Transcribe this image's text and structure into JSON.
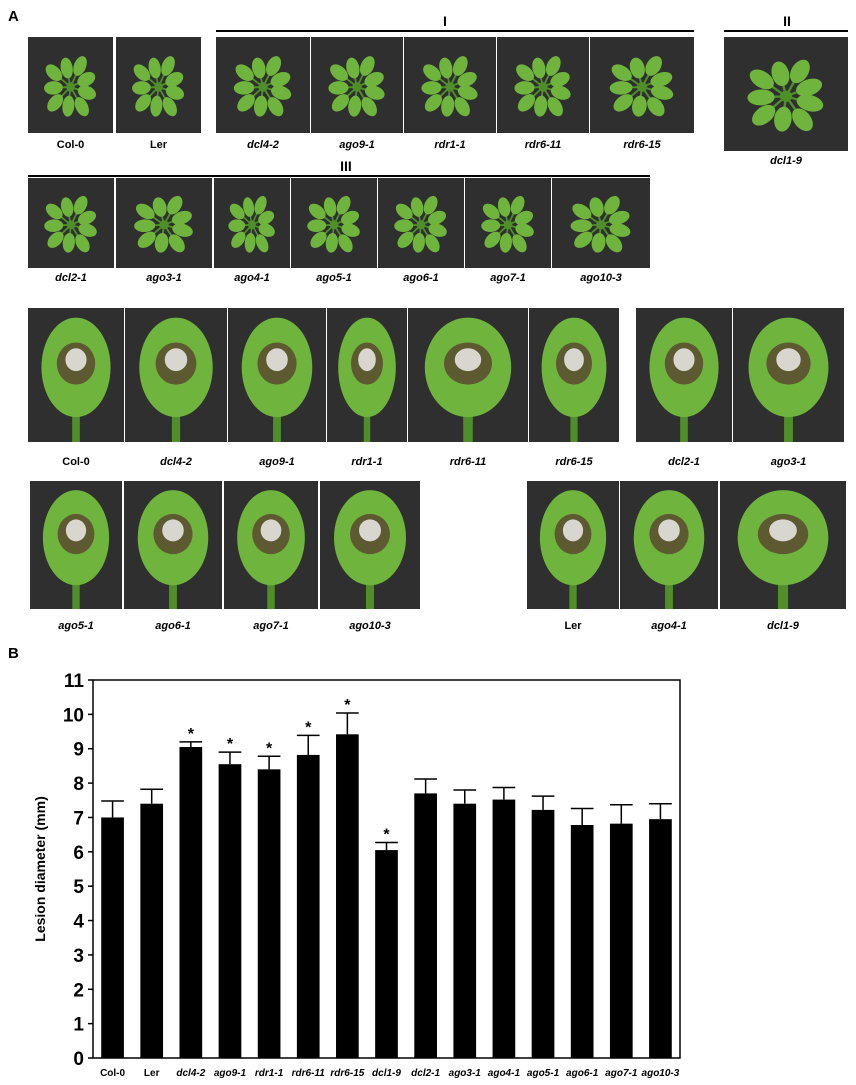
{
  "panels": {
    "a": "A",
    "b": "B"
  },
  "group_labels": {
    "g1": "I",
    "g2": "II",
    "g3": "III"
  },
  "row1": [
    {
      "label": "Col-0",
      "italic": false
    },
    {
      "label": "Ler",
      "italic": false
    },
    {
      "label": "dcl4-2",
      "italic": true
    },
    {
      "label": "ago9-1",
      "italic": true
    },
    {
      "label": "rdr1-1",
      "italic": true
    },
    {
      "label": "rdr6-11",
      "italic": true
    },
    {
      "label": "rdr6-15",
      "italic": true
    },
    {
      "label": "dcl1-9",
      "italic": true
    }
  ],
  "row2": [
    {
      "label": "dcl2-1",
      "italic": true
    },
    {
      "label": "ago3-1",
      "italic": true
    },
    {
      "label": "ago4-1",
      "italic": true
    },
    {
      "label": "ago5-1",
      "italic": true
    },
    {
      "label": "ago6-1",
      "italic": true
    },
    {
      "label": "ago7-1",
      "italic": true
    },
    {
      "label": "ago10-3",
      "italic": true
    }
  ],
  "leaves1": [
    {
      "label": "Col-0",
      "italic": false
    },
    {
      "label": "dcl4-2",
      "italic": true
    },
    {
      "label": "ago9-1",
      "italic": true
    },
    {
      "label": "rdr1-1",
      "italic": true
    },
    {
      "label": "rdr6-11",
      "italic": true
    },
    {
      "label": "rdr6-15",
      "italic": true
    },
    {
      "label": "dcl2-1",
      "italic": true
    },
    {
      "label": "ago3-1",
      "italic": true
    }
  ],
  "leaves2": [
    {
      "label": "ago5-1",
      "italic": true
    },
    {
      "label": "ago6-1",
      "italic": true
    },
    {
      "label": "ago7-1",
      "italic": true
    },
    {
      "label": "ago10-3",
      "italic": true
    },
    {
      "label": "Ler",
      "italic": false
    },
    {
      "label": "ago4-1",
      "italic": true
    },
    {
      "label": "dcl1-9",
      "italic": true
    }
  ],
  "chart_data": {
    "type": "bar",
    "ylabel": "Lesion diameter (mm)",
    "ylim": [
      0,
      11
    ],
    "yticks": [
      0,
      1,
      2,
      3,
      4,
      5,
      6,
      7,
      8,
      9,
      10,
      11
    ],
    "categories": [
      "Col-0",
      "Ler",
      "dcl4-2",
      "ago9-1",
      "rdr1-1",
      "rdr6-11",
      "rdr6-15",
      "dcl1-9",
      "dcl2-1",
      "ago3-1",
      "ago4-1",
      "ago5-1",
      "ago6-1",
      "ago7-1",
      "ago10-3"
    ],
    "italic": [
      false,
      false,
      true,
      true,
      true,
      true,
      true,
      true,
      true,
      true,
      true,
      true,
      true,
      true,
      true
    ],
    "values": [
      7.0,
      7.4,
      9.05,
      8.55,
      8.4,
      8.82,
      9.42,
      6.05,
      7.7,
      7.4,
      7.52,
      7.22,
      6.78,
      6.82,
      6.95
    ],
    "errors": [
      0.48,
      0.42,
      0.15,
      0.35,
      0.38,
      0.57,
      0.62,
      0.22,
      0.42,
      0.4,
      0.35,
      0.4,
      0.48,
      0.55,
      0.45
    ],
    "significance": [
      "",
      "",
      "*",
      "*",
      "*",
      "*",
      "*",
      "*",
      "",
      "",
      "",
      "",
      "",
      "",
      ""
    ],
    "bar_color": "#000000",
    "grid": false
  },
  "colors": {
    "photo_bg": "#2f2f2f",
    "leaf": "#6fb43c",
    "leaf_dark": "#4e8f2a",
    "lesion": "#5a4a30",
    "plug": "#d9d6cf"
  }
}
